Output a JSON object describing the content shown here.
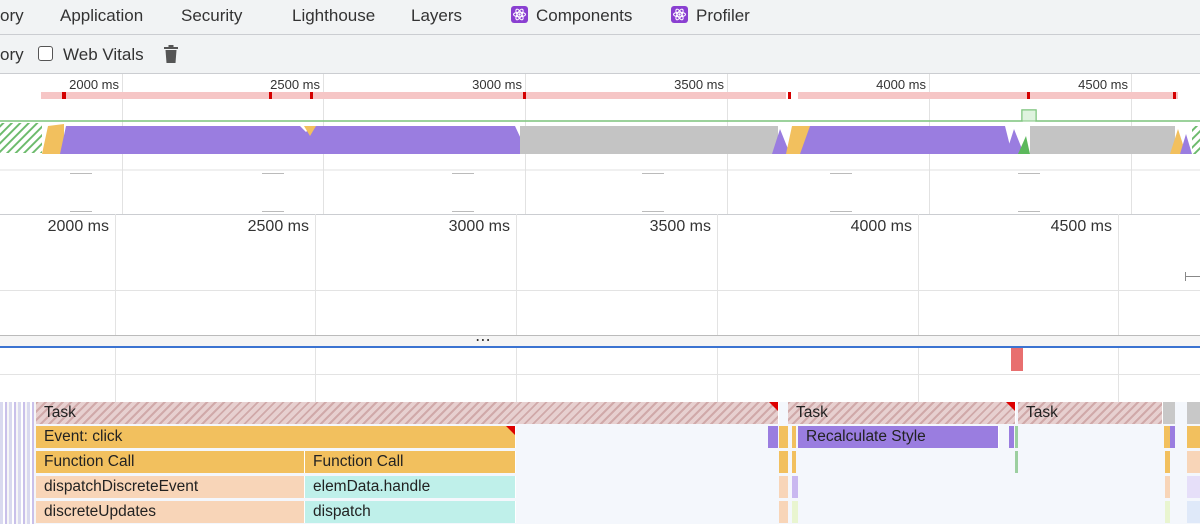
{
  "tabs": [
    {
      "label": "ory"
    },
    {
      "label": "Application"
    },
    {
      "label": "Security"
    },
    {
      "label": "Lighthouse"
    },
    {
      "label": "Layers"
    },
    {
      "label": "Components",
      "icon": "react-icon"
    },
    {
      "label": "Profiler",
      "icon": "react-icon"
    }
  ],
  "toolbar": {
    "partial_label": "ory",
    "web_vitals_label": "Web Vitals",
    "web_vitals_checked": false,
    "trash_icon": "trash-icon"
  },
  "overview": {
    "ticks": [
      "2000 ms",
      "2500 ms",
      "3000 ms",
      "3500 ms",
      "4000 ms",
      "4500 ms"
    ]
  },
  "timeline": {
    "ticks": [
      "2000 ms",
      "2500 ms",
      "3000 ms",
      "3500 ms",
      "4000 ms",
      "4500 ms"
    ],
    "resize_handle": "⋯"
  },
  "flame": {
    "tasks": [
      "Task",
      "Task",
      "Task"
    ],
    "event": "Event: click",
    "function_calls": [
      "Function Call",
      "Function Call"
    ],
    "recalc": "Recalculate Style",
    "row4": [
      "dispatchDiscreteEvent",
      "elemData.handle"
    ],
    "row5": [
      "discreteUpdates",
      "dispatch"
    ]
  },
  "colors": {
    "task": "#d6b3b3",
    "event": "#f2c05e",
    "purple": "#9a7de0",
    "salmon": "#f8d5b8",
    "teal": "#bff0ea",
    "red": "#e06666"
  }
}
